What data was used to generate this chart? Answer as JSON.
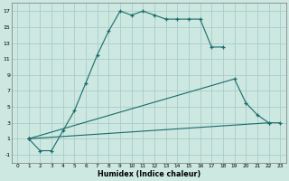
{
  "xlabel": "Humidex (Indice chaleur)",
  "bg_color": "#cce8e0",
  "grid_color": "#aacccc",
  "line_color": "#1a6b6b",
  "marker": "+",
  "markersize": 3.5,
  "linewidth": 0.8,
  "xlim": [
    -0.5,
    23.5
  ],
  "ylim": [
    -2,
    18
  ],
  "xticks": [
    0,
    1,
    2,
    3,
    4,
    5,
    6,
    7,
    8,
    9,
    10,
    11,
    12,
    13,
    14,
    15,
    16,
    17,
    18,
    19,
    20,
    21,
    22,
    23
  ],
  "yticks": [
    -1,
    1,
    3,
    5,
    7,
    9,
    11,
    13,
    15,
    17
  ],
  "line1_x": [
    1,
    2,
    3,
    4,
    5,
    6,
    7,
    8,
    9,
    10,
    11,
    12,
    13,
    14,
    15,
    16,
    17,
    18
  ],
  "line1_y": [
    1,
    -0.5,
    -0.5,
    2,
    4.5,
    8,
    11.5,
    14.5,
    17,
    16.5,
    17,
    16.5,
    16,
    16,
    16,
    16,
    12.5,
    12.5
  ],
  "line2_x": [
    1,
    19,
    20,
    21,
    22
  ],
  "line2_y": [
    1,
    8.5,
    5.5,
    4.0,
    3.0
  ],
  "line3_x": [
    1,
    22,
    23
  ],
  "line3_y": [
    1,
    3.0,
    3.0
  ]
}
